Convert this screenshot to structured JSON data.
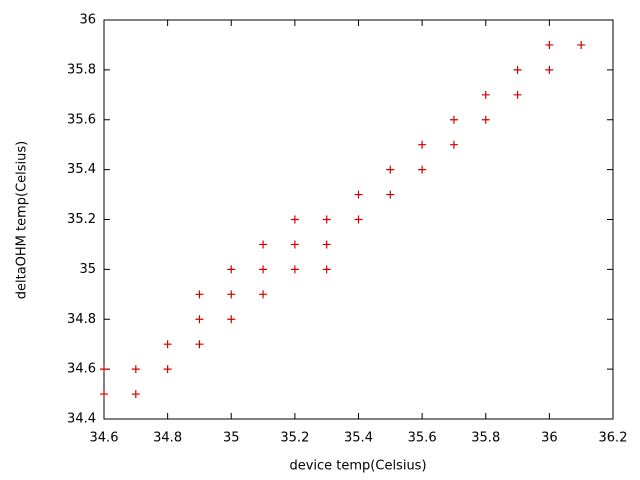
{
  "chart_data": {
    "type": "scatter",
    "xlabel": "device temp(Celsius)",
    "ylabel": "deltaOHM temp(Celsius)",
    "x": [
      34.6,
      34.6,
      34.7,
      34.7,
      34.8,
      34.8,
      34.9,
      34.9,
      34.9,
      35.0,
      35.0,
      35.0,
      35.1,
      35.1,
      35.1,
      35.2,
      35.2,
      35.2,
      35.3,
      35.3,
      35.3,
      35.4,
      35.4,
      35.5,
      35.5,
      35.6,
      35.6,
      35.7,
      35.7,
      35.8,
      35.8,
      35.9,
      35.9,
      36.0,
      36.0,
      36.1
    ],
    "values": [
      34.6,
      34.5,
      34.6,
      34.5,
      34.7,
      34.6,
      34.9,
      34.8,
      34.7,
      35.0,
      34.9,
      34.8,
      35.1,
      35.0,
      34.9,
      35.2,
      35.1,
      35.0,
      35.2,
      35.1,
      35.0,
      35.3,
      35.2,
      35.4,
      35.3,
      35.5,
      35.4,
      35.6,
      35.5,
      35.7,
      35.6,
      35.8,
      35.7,
      35.9,
      35.8,
      35.9
    ],
    "color": "#d00000",
    "xlim": [
      34.6,
      36.2
    ],
    "xticks": [
      34.6,
      34.8,
      35,
      35.2,
      35.4,
      35.6,
      35.8,
      36,
      36.2
    ],
    "ylim": [
      34.4,
      36
    ],
    "yticks": [
      34.4,
      34.6,
      34.8,
      35,
      35.2,
      35.4,
      35.6,
      35.8,
      36
    ]
  }
}
